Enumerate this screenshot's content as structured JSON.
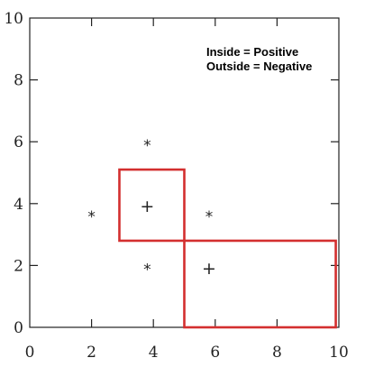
{
  "chart_data": {
    "type": "scatter",
    "xlim": [
      0,
      10
    ],
    "ylim": [
      0,
      10
    ],
    "x_ticks": [
      0,
      2,
      4,
      6,
      8,
      10
    ],
    "y_ticks": [
      0,
      2,
      4,
      6,
      8,
      10
    ],
    "x_tick_labels": [
      "0",
      "2",
      "4",
      "6",
      "8",
      "10"
    ],
    "y_tick_labels": [
      "0",
      "2",
      "4",
      "6",
      "8",
      "10"
    ],
    "grid": false,
    "series": [
      {
        "marker": "+",
        "points": [
          {
            "x": 3.8,
            "y": 3.9
          },
          {
            "x": 5.8,
            "y": 1.9
          }
        ]
      },
      {
        "marker": "*",
        "points": [
          {
            "x": 2.0,
            "y": 3.7
          },
          {
            "x": 5.8,
            "y": 3.7
          },
          {
            "x": 3.8,
            "y": 6.0
          },
          {
            "x": 3.8,
            "y": 2.0
          }
        ]
      }
    ],
    "rectangles": [
      {
        "x_min": 2.9,
        "x_max": 5.0,
        "y_min": 2.8,
        "y_max": 5.1,
        "color": "#d32f2f"
      },
      {
        "x_min": 5.0,
        "x_max": 9.9,
        "y_min": 0.0,
        "y_max": 2.8,
        "color": "#d32f2f"
      }
    ],
    "annotations": [
      "Inside = Positive",
      "Outside = Negative"
    ],
    "annotation_position": "top-right",
    "axis_color": "#222222"
  }
}
